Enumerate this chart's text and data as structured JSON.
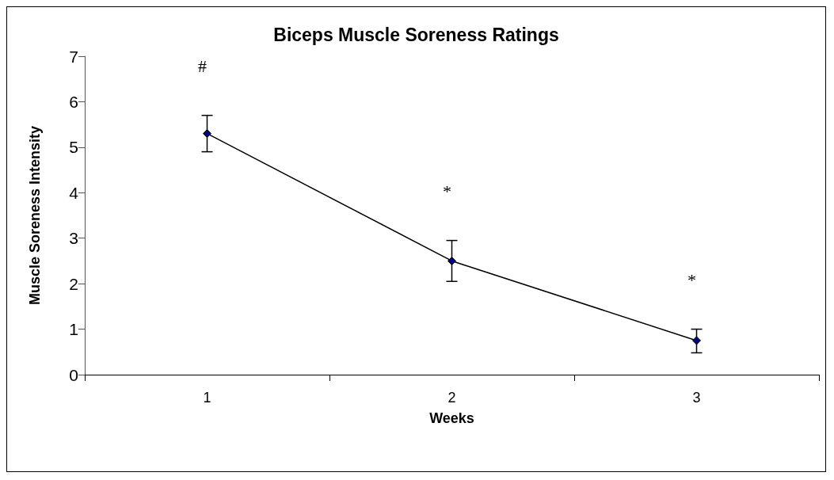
{
  "chart_data": {
    "type": "line",
    "title": "Biceps Muscle Soreness Ratings",
    "xlabel": "Weeks",
    "ylabel": "Muscle Soreness Intensity",
    "categories": [
      "1",
      "2",
      "3"
    ],
    "series": [
      {
        "color": "#000080",
        "values": [
          5.3,
          2.5,
          0.75
        ],
        "errors": [
          [
            4.9,
            5.7
          ],
          [
            2.05,
            2.95
          ],
          [
            0.48,
            1.0
          ]
        ]
      }
    ],
    "ylim": [
      0,
      7
    ],
    "yticks": [
      0,
      1,
      2,
      3,
      4,
      5,
      6,
      7
    ],
    "marker": "diamond",
    "line_style": "solid",
    "annotations": [
      "#",
      "*",
      "*"
    ]
  }
}
